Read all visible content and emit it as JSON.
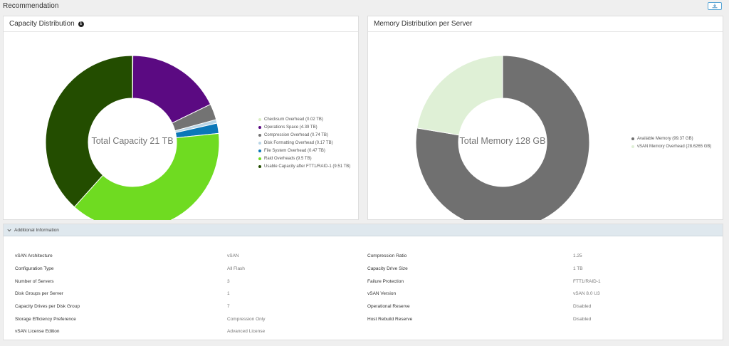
{
  "page": {
    "title": "Recommendation",
    "download_icon": "download-icon"
  },
  "capacity": {
    "title": "Capacity Distribution",
    "info_icon": "i",
    "center_label": "Total Capacity 21 TB",
    "items": [
      {
        "label": "Checksum Overhead (0.02 TB)",
        "value": 0.02,
        "color": "#d9efc4"
      },
      {
        "label": "Operations Space (4.39 TB)",
        "value": 4.39,
        "color": "#5b0a82"
      },
      {
        "label": "Compression Overhead (0.74 TB)",
        "value": 0.74,
        "color": "#737373"
      },
      {
        "label": "Disk Formatting Overhead (0.17 TB)",
        "value": 0.17,
        "color": "#b9d5e6"
      },
      {
        "label": "File System Overhead (0.47 TB)",
        "value": 0.47,
        "color": "#0b77b8"
      },
      {
        "label": "Raid Overheads (9.5 TB)",
        "value": 9.5,
        "color": "#6fdb21"
      },
      {
        "label": "Usable Capacity after FTT1/RAID-1 (9.51 TB)",
        "value": 9.51,
        "color": "#234d00"
      }
    ]
  },
  "memory": {
    "title": "Memory Distribution per Server",
    "center_label": "Total Memory 128 GB",
    "items": [
      {
        "label": "Available Memory (99.37 GB)",
        "value": 99.37,
        "color": "#707070"
      },
      {
        "label": "vSAN Memory Overhead (28.6265 GB)",
        "value": 28.6265,
        "color": "#dff0d6"
      }
    ]
  },
  "additional": {
    "title": "Additional Information",
    "rows": [
      {
        "l1": "vSAN Architecture",
        "v1": "vSAN",
        "l2": "Compression Ratio",
        "v2": "1.25"
      },
      {
        "l1": "Configuration Type",
        "v1": "All Flash",
        "l2": "Capacity Drive Size",
        "v2": "1 TB"
      },
      {
        "l1": "Number of Servers",
        "v1": "3",
        "l2": "Failure Protection",
        "v2": "FTT1/RAID-1"
      },
      {
        "l1": "Disk Groups per Server",
        "v1": "1",
        "l2": "vSAN Version",
        "v2": "vSAN 8.0 U3"
      },
      {
        "l1": "Capacity Drives per Disk Group",
        "v1": "7",
        "l2": "Operational Reserve",
        "v2": "Disabled"
      },
      {
        "l1": "Storage Efficiency Preference",
        "v1": "Compression Only",
        "l2": "Host Rebuild Reserve",
        "v2": "Disabled"
      },
      {
        "l1": "vSAN License Edition",
        "v1": "Advanced License",
        "l2": "",
        "v2": ""
      }
    ]
  }
}
